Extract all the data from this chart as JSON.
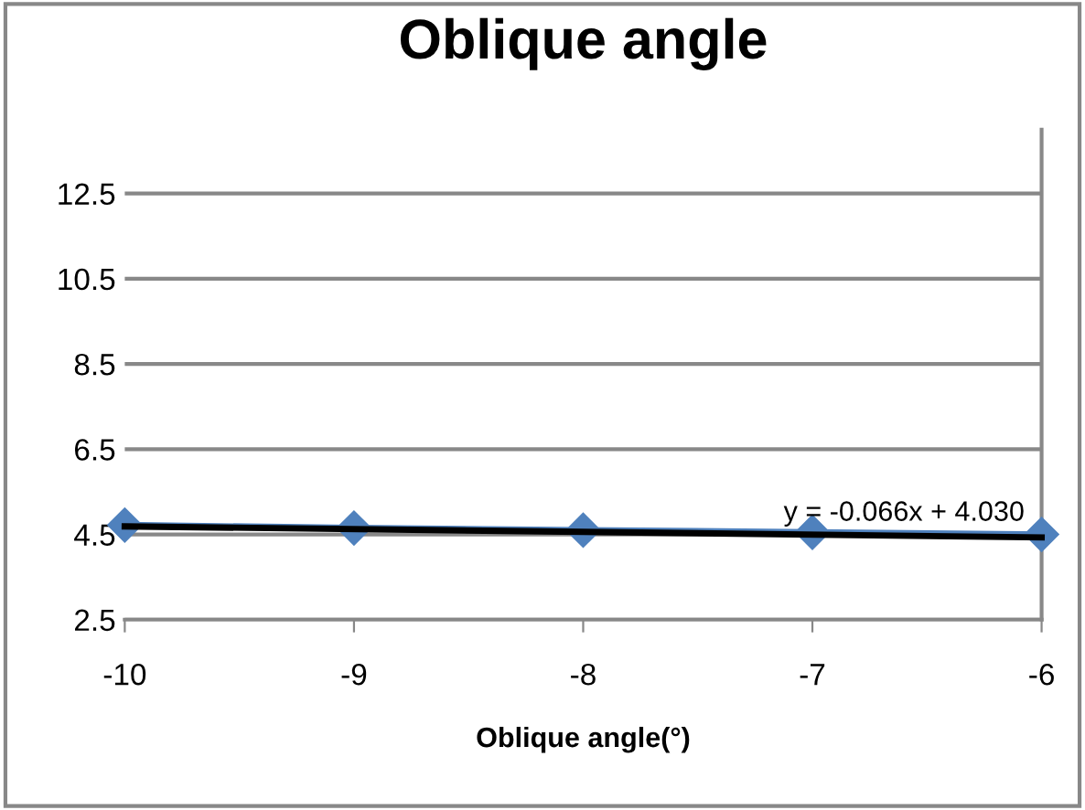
{
  "chart_data": {
    "type": "line",
    "title": "Oblique angle",
    "xlabel": "Oblique angle(°)",
    "x": [
      -10,
      -9,
      -8,
      -7,
      -6
    ],
    "series": [
      {
        "color": "#4f81bd",
        "values": [
          4.72,
          4.65,
          4.6,
          4.55,
          4.5
        ],
        "marker": "diamond"
      },
      {
        "type": "line",
        "color": "#000000",
        "x": [
          -10,
          -6
        ],
        "values": [
          4.69,
          4.43
        ],
        "marker": "none"
      }
    ],
    "annotations": [
      "y = -0.066x + 4.030"
    ],
    "xlim": [
      -10,
      -6
    ],
    "xticks": [
      -10,
      -9,
      -8,
      -7,
      -6
    ],
    "ylim": [
      2.5,
      14
    ],
    "yticks": [
      2.5,
      4.5,
      6.5,
      8.5,
      10.5,
      12.5
    ],
    "grid": "y",
    "legend": false
  }
}
